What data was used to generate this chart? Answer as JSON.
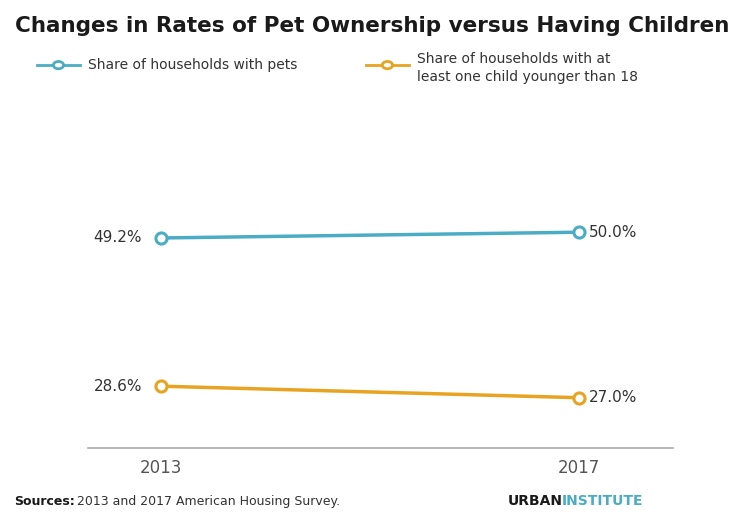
{
  "title": "Changes in Rates of Pet Ownership versus Having Children",
  "years": [
    2013,
    2017
  ],
  "pets_values": [
    49.2,
    50.0
  ],
  "children_values": [
    28.6,
    27.0
  ],
  "pets_color": "#4BACC6",
  "children_color": "#E8A320",
  "pets_label": "Share of households with pets",
  "children_label_line1": "Share of households with at",
  "children_label_line2": "least one child younger than 18",
  "pets_annotations": [
    "49.2%",
    "50.0%"
  ],
  "children_annotations": [
    "28.6%",
    "27.0%"
  ],
  "source_bold": "Sources:",
  "source_text": "2013 and 2017 American Housing Survey.",
  "urban": "URBAN",
  "institute": "INSTITUTE",
  "urban_color": "#1A1A1A",
  "institute_color": "#4BACC6",
  "background_color": "#FFFFFF",
  "xlim": [
    2012.3,
    2017.9
  ],
  "ylim": [
    20,
    62
  ]
}
